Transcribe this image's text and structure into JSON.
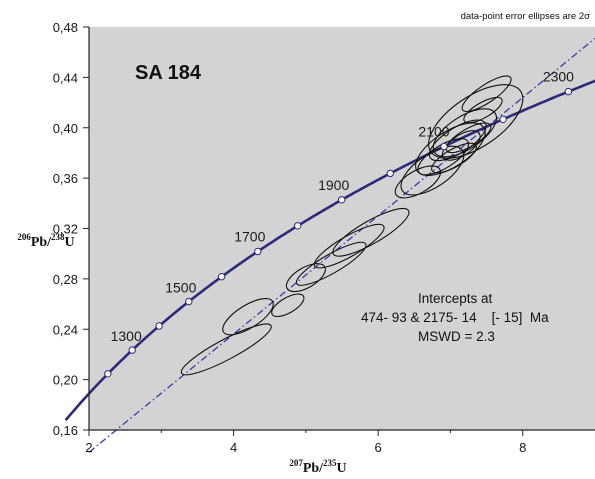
{
  "chart_data": {
    "type": "scatter",
    "subtype": "concordia-diagram",
    "sample": "SA 184",
    "note": "data-point error ellipses are 2σ",
    "xlabel": {
      "sup": "207",
      "base": "Pb/",
      "sup2": "235",
      "end": "U"
    },
    "ylabel": {
      "sup": "206",
      "base": "Pb/",
      "sup2": "238",
      "end": "U"
    },
    "xlim": [
      2,
      9
    ],
    "ylim": [
      0.16,
      0.48
    ],
    "xticks": [
      "2",
      "4",
      "6",
      "8"
    ],
    "xtick_values": [
      2,
      4,
      6,
      8
    ],
    "yticks": [
      "0,16",
      "0,20",
      "0,24",
      "0,28",
      "0,32",
      "0,36",
      "0,40",
      "0,44",
      "0,48"
    ],
    "ytick_values": [
      0.16,
      0.2,
      0.24,
      0.28,
      0.32,
      0.36,
      0.4,
      0.44,
      0.48
    ],
    "concordia_ages_labeled": [
      "1300",
      "1500",
      "1700",
      "1900",
      "2100",
      "2300"
    ],
    "concordia_ages_labeled_values": [
      1300,
      1500,
      1700,
      1900,
      2100,
      2300
    ],
    "concordia_markers_ma": [
      1200,
      1300,
      1400,
      1500,
      1600,
      1700,
      1800,
      1900,
      2000,
      2100,
      2200,
      2300,
      2400
    ],
    "discordia": {
      "lower_intercept_ma": 474,
      "upper_intercept_ma": 2175
    },
    "intercepts_text": {
      "line1": "Intercepts at",
      "line2": "474- 93 & 2175- 14    [- 15]  Ma",
      "line3": "MSWD = 2.3"
    },
    "ellipses": [
      {
        "x": 3.9,
        "y": 0.224,
        "ax": 0.7,
        "ay": 0.008,
        "rot": 28
      },
      {
        "x": 4.2,
        "y": 0.25,
        "ax": 0.4,
        "ay": 0.009,
        "rot": 32
      },
      {
        "x": 4.75,
        "y": 0.259,
        "ax": 0.25,
        "ay": 0.006,
        "rot": 30
      },
      {
        "x": 5.0,
        "y": 0.281,
        "ax": 0.3,
        "ay": 0.008,
        "rot": 30
      },
      {
        "x": 5.35,
        "y": 0.292,
        "ax": 0.55,
        "ay": 0.0075,
        "rot": 30
      },
      {
        "x": 5.6,
        "y": 0.306,
        "ax": 0.55,
        "ay": 0.008,
        "rot": 30
      },
      {
        "x": 5.9,
        "y": 0.317,
        "ax": 0.6,
        "ay": 0.009,
        "rot": 30
      },
      {
        "x": 6.55,
        "y": 0.357,
        "ax": 0.35,
        "ay": 0.009,
        "rot": 30
      },
      {
        "x": 6.75,
        "y": 0.366,
        "ax": 0.5,
        "ay": 0.013,
        "rot": 34
      },
      {
        "x": 6.9,
        "y": 0.377,
        "ax": 0.4,
        "ay": 0.009,
        "rot": 32
      },
      {
        "x": 7.0,
        "y": 0.383,
        "ax": 0.55,
        "ay": 0.014,
        "rot": 33
      },
      {
        "x": 7.05,
        "y": 0.376,
        "ax": 0.35,
        "ay": 0.007,
        "rot": 30
      },
      {
        "x": 7.1,
        "y": 0.39,
        "ax": 0.45,
        "ay": 0.01,
        "rot": 32
      },
      {
        "x": 7.15,
        "y": 0.386,
        "ax": 0.3,
        "ay": 0.008,
        "rot": 34
      },
      {
        "x": 7.2,
        "y": 0.396,
        "ax": 0.5,
        "ay": 0.013,
        "rot": 33
      },
      {
        "x": 7.25,
        "y": 0.392,
        "ax": 0.35,
        "ay": 0.007,
        "rot": 30
      },
      {
        "x": 7.35,
        "y": 0.405,
        "ax": 0.75,
        "ay": 0.02,
        "rot": 34
      },
      {
        "x": 7.45,
        "y": 0.414,
        "ax": 0.3,
        "ay": 0.006,
        "rot": 30
      },
      {
        "x": 7.5,
        "y": 0.427,
        "ax": 0.4,
        "ay": 0.007,
        "rot": 34
      }
    ],
    "colors": {
      "plot_background": "#d4d3d3",
      "concordia": "#2b2a7a",
      "discordia": "#3a3aa8",
      "ellipse": "#111111",
      "marker_fill": "#ffffff"
    }
  }
}
